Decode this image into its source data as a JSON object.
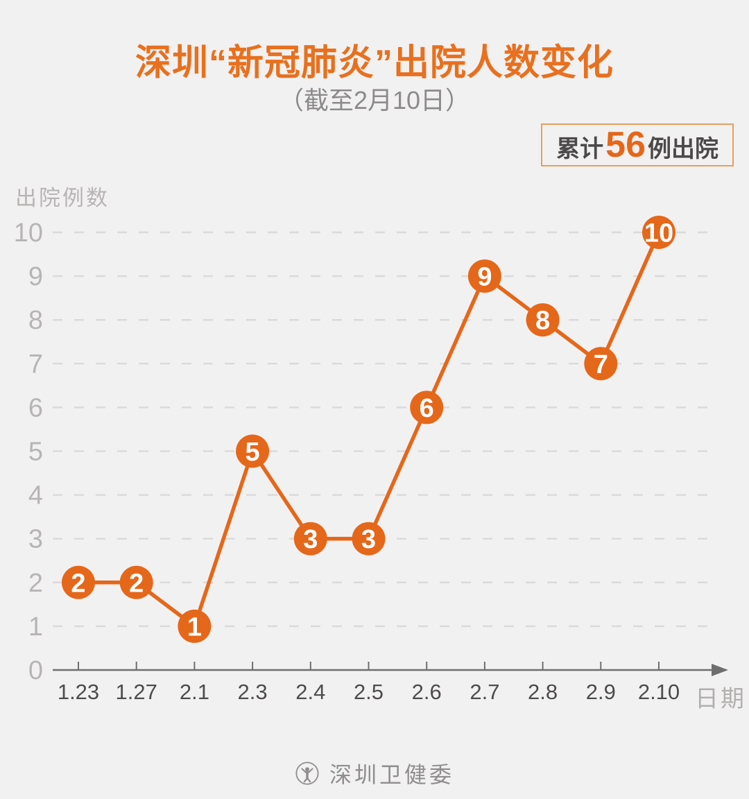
{
  "header": {
    "title": "深圳“新冠肺炎”出院人数变化",
    "subtitle": "（截至2月10日）"
  },
  "summary_badge": {
    "prefix": "累计",
    "count": "56",
    "suffix": "例出院"
  },
  "chart_data": {
    "type": "line",
    "title": "深圳“新冠肺炎”出院人数变化",
    "subtitle": "（截至2月10日）",
    "categories": [
      "1.23",
      "1.27",
      "2.1",
      "2.3",
      "2.4",
      "2.5",
      "2.6",
      "2.7",
      "2.8",
      "2.9",
      "2.10"
    ],
    "values": [
      2,
      2,
      1,
      5,
      3,
      3,
      6,
      9,
      8,
      7,
      10
    ],
    "ylabel": "出院例数",
    "xlabel": "日期",
    "ylim": [
      0,
      10
    ],
    "yticks": [
      0,
      1,
      2,
      3,
      4,
      5,
      6,
      7,
      8,
      9,
      10
    ],
    "grid": "horizontal dashed",
    "legend": "none",
    "marker": "filled circle with white value label",
    "cumulative_total": 56
  },
  "colors": {
    "accent_orange": "#e5671a",
    "title_orange": "#e8701e",
    "badge_border": "#ea9c5f",
    "dark_text": "#4b4949",
    "subtitle_gray": "#8c8a8a",
    "light_gray": "#b7b4b4",
    "gridline": "#dbd9d9",
    "axis": "#6e6e6e",
    "background": "#f2f1f1"
  },
  "footer": {
    "logo_icon": "shenzhen-whc-seal-icon",
    "text": "深圳卫健委"
  }
}
